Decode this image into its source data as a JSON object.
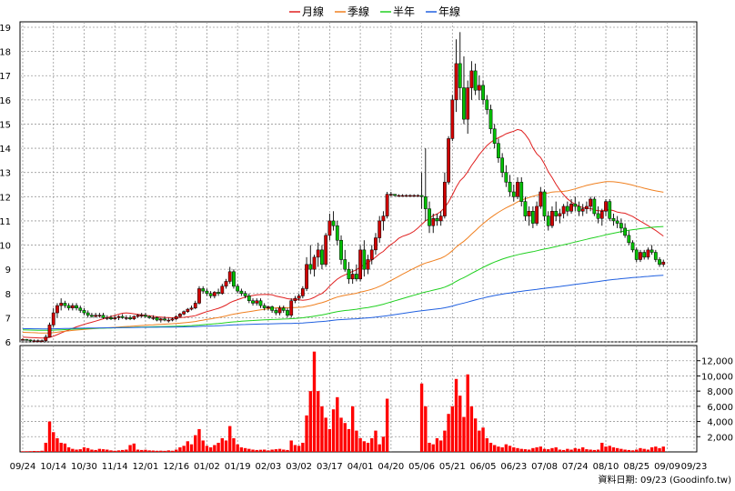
{
  "legend": [
    {
      "label": "月線",
      "color": "#e02020"
    },
    {
      "label": "季線",
      "color": "#f08020"
    },
    {
      "label": "半年",
      "color": "#20d020"
    },
    {
      "label": "年線",
      "color": "#2060e0"
    }
  ],
  "credit": "資料日期: 09/23  (Goodinfo.tw)",
  "chart_data": {
    "type": "candlestick",
    "price_axis": {
      "ylim": [
        6,
        19
      ],
      "ticks": [
        6,
        7,
        8,
        9,
        10,
        11,
        12,
        13,
        14,
        15,
        16,
        17,
        18,
        19
      ]
    },
    "volume_axis": {
      "ylim": [
        0,
        14000
      ],
      "ticks": [
        "2,000",
        "4,000",
        "6,000",
        "8,000",
        "10,000",
        "12,000"
      ],
      "tick_values": [
        2000,
        4000,
        6000,
        8000,
        10000,
        12000
      ]
    },
    "x_ticks": [
      "09/24",
      "10/14",
      "10/30",
      "11/14",
      "12/01",
      "12/16",
      "01/02",
      "01/19",
      "02/03",
      "03/02",
      "03/17",
      "04/01",
      "04/20",
      "05/06",
      "05/21",
      "06/05",
      "06/23",
      "07/08",
      "07/24",
      "08/10",
      "08/25",
      "09/09",
      "09/23"
    ],
    "x_tick_index": [
      0,
      8,
      16,
      24,
      32,
      40,
      48,
      56,
      64,
      72,
      80,
      88,
      96,
      104,
      112,
      120,
      128,
      136,
      144,
      152,
      160,
      168,
      175
    ],
    "n_days": 176,
    "prices": [
      [
        6.1,
        6.15,
        6.05,
        6.1
      ],
      [
        6.1,
        6.12,
        6.05,
        6.08
      ],
      [
        6.08,
        6.1,
        6.02,
        6.05
      ],
      [
        6.05,
        6.1,
        6.0,
        6.05
      ],
      [
        6.05,
        6.1,
        6.0,
        6.05
      ],
      [
        6.05,
        6.1,
        6.0,
        6.05
      ],
      [
        6.05,
        6.3,
        6.0,
        6.2
      ],
      [
        6.2,
        6.8,
        6.2,
        6.7
      ],
      [
        6.7,
        7.4,
        6.6,
        7.2
      ],
      [
        7.2,
        7.6,
        7.0,
        7.5
      ],
      [
        7.5,
        7.8,
        7.3,
        7.6
      ],
      [
        7.6,
        7.7,
        7.4,
        7.5
      ],
      [
        7.5,
        7.6,
        7.3,
        7.4
      ],
      [
        7.4,
        7.6,
        7.3,
        7.5
      ],
      [
        7.5,
        7.6,
        7.3,
        7.4
      ],
      [
        7.4,
        7.5,
        7.2,
        7.3
      ],
      [
        7.3,
        7.4,
        7.1,
        7.2
      ],
      [
        7.2,
        7.3,
        7.0,
        7.1
      ],
      [
        7.1,
        7.2,
        7.0,
        7.05
      ],
      [
        7.05,
        7.2,
        7.0,
        7.1
      ],
      [
        7.1,
        7.2,
        7.0,
        7.1
      ],
      [
        7.1,
        7.2,
        6.95,
        7.0
      ],
      [
        7.0,
        7.1,
        6.9,
        7.0
      ],
      [
        7.0,
        7.1,
        6.9,
        6.95
      ],
      [
        6.95,
        7.1,
        6.9,
        7.0
      ],
      [
        7.0,
        7.1,
        6.9,
        7.05
      ],
      [
        7.05,
        7.15,
        6.95,
        7.0
      ],
      [
        7.0,
        7.1,
        6.9,
        7.0
      ],
      [
        7.0,
        7.1,
        6.9,
        6.95
      ],
      [
        6.95,
        7.1,
        6.9,
        7.05
      ],
      [
        7.05,
        7.15,
        7.0,
        7.1
      ],
      [
        7.1,
        7.2,
        7.0,
        7.1
      ],
      [
        7.1,
        7.2,
        7.0,
        7.05
      ],
      [
        7.05,
        7.1,
        6.95,
        7.0
      ],
      [
        7.0,
        7.1,
        6.9,
        7.0
      ],
      [
        7.0,
        7.05,
        6.85,
        6.9
      ],
      [
        6.9,
        7.0,
        6.8,
        6.95
      ],
      [
        6.95,
        7.05,
        6.85,
        6.9
      ],
      [
        6.9,
        7.0,
        6.8,
        6.9
      ],
      [
        6.9,
        7.0,
        6.85,
        6.95
      ],
      [
        6.95,
        7.1,
        6.9,
        7.05
      ],
      [
        7.05,
        7.2,
        7.0,
        7.15
      ],
      [
        7.15,
        7.3,
        7.1,
        7.25
      ],
      [
        7.25,
        7.4,
        7.2,
        7.35
      ],
      [
        7.35,
        7.5,
        7.3,
        7.4
      ],
      [
        7.4,
        7.7,
        7.35,
        7.6
      ],
      [
        7.6,
        8.3,
        7.55,
        8.2
      ],
      [
        8.2,
        8.3,
        8.0,
        8.1
      ],
      [
        8.1,
        8.2,
        7.9,
        8.0
      ],
      [
        8.0,
        8.1,
        7.8,
        7.9
      ],
      [
        7.9,
        8.1,
        7.8,
        8.05
      ],
      [
        8.05,
        8.2,
        7.9,
        8.0
      ],
      [
        8.0,
        8.4,
        7.95,
        8.3
      ],
      [
        8.3,
        8.6,
        8.2,
        8.5
      ],
      [
        8.5,
        9.1,
        8.4,
        8.9
      ],
      [
        8.9,
        9.0,
        8.2,
        8.3
      ],
      [
        8.3,
        8.4,
        8.0,
        8.1
      ],
      [
        8.1,
        8.2,
        7.9,
        8.0
      ],
      [
        8.0,
        8.1,
        7.8,
        7.9
      ],
      [
        7.9,
        8.0,
        7.6,
        7.7
      ],
      [
        7.7,
        7.8,
        7.5,
        7.6
      ],
      [
        7.6,
        7.8,
        7.5,
        7.7
      ],
      [
        7.7,
        7.8,
        7.4,
        7.5
      ],
      [
        7.5,
        7.6,
        7.3,
        7.4
      ],
      [
        7.4,
        7.5,
        7.3,
        7.45
      ],
      [
        7.45,
        7.5,
        7.2,
        7.3
      ],
      [
        7.3,
        7.4,
        7.1,
        7.2
      ],
      [
        7.2,
        7.5,
        7.1,
        7.4
      ],
      [
        7.4,
        7.5,
        7.2,
        7.3
      ],
      [
        7.3,
        7.4,
        7.0,
        7.1
      ],
      [
        7.1,
        7.8,
        7.0,
        7.7
      ],
      [
        7.7,
        7.9,
        7.6,
        7.8
      ],
      [
        7.8,
        8.0,
        7.7,
        7.9
      ],
      [
        7.9,
        8.3,
        7.8,
        8.2
      ],
      [
        8.2,
        9.5,
        8.1,
        9.2
      ],
      [
        9.2,
        10.0,
        8.8,
        9.0
      ],
      [
        9.0,
        9.6,
        8.7,
        9.5
      ],
      [
        9.5,
        10.1,
        9.1,
        9.8
      ],
      [
        9.8,
        10.0,
        9.0,
        9.2
      ],
      [
        9.2,
        10.5,
        9.1,
        10.4
      ],
      [
        10.4,
        11.3,
        10.2,
        11.0
      ],
      [
        11.0,
        11.4,
        10.6,
        10.8
      ],
      [
        10.8,
        11.0,
        10.0,
        10.2
      ],
      [
        10.2,
        10.4,
        9.2,
        9.4
      ],
      [
        9.4,
        9.8,
        8.9,
        9.0
      ],
      [
        9.0,
        9.3,
        8.4,
        8.6
      ],
      [
        8.6,
        9.0,
        8.4,
        8.8
      ],
      [
        8.8,
        9.2,
        8.5,
        8.6
      ],
      [
        8.6,
        10.0,
        8.5,
        9.8
      ],
      [
        9.8,
        10.2,
        8.7,
        9.0
      ],
      [
        9.0,
        9.6,
        8.8,
        9.4
      ],
      [
        9.4,
        10.0,
        9.2,
        9.8
      ],
      [
        9.8,
        10.5,
        9.6,
        10.3
      ],
      [
        10.3,
        11.2,
        10.1,
        11.0
      ],
      [
        11.0,
        11.4,
        10.6,
        11.2
      ],
      [
        11.2,
        12.2,
        11.1,
        12.1
      ],
      [
        12.1,
        12.2,
        12.0,
        12.1
      ],
      [
        12.1,
        12.1,
        12.0,
        12.05
      ],
      [
        12.05,
        12.1,
        12.0,
        12.05
      ],
      [
        12.05,
        12.1,
        12.0,
        12.05
      ],
      [
        12.05,
        12.1,
        12.0,
        12.05
      ],
      [
        12.05,
        12.1,
        12.0,
        12.05
      ],
      [
        12.05,
        12.1,
        12.0,
        12.05
      ],
      [
        12.05,
        12.1,
        12.0,
        12.05
      ],
      [
        12.05,
        13.0,
        11.5,
        12.0
      ],
      [
        12.0,
        14.0,
        11.0,
        11.5
      ],
      [
        11.5,
        11.8,
        10.5,
        10.8
      ],
      [
        10.8,
        11.3,
        10.5,
        11.1
      ],
      [
        11.1,
        11.3,
        10.8,
        11.0
      ],
      [
        11.0,
        11.4,
        10.8,
        11.2
      ],
      [
        11.2,
        13.0,
        11.1,
        12.6
      ],
      [
        12.6,
        14.5,
        12.5,
        14.4
      ],
      [
        14.4,
        16.2,
        14.3,
        16.0
      ],
      [
        16.0,
        18.5,
        15.5,
        17.5
      ],
      [
        17.5,
        18.8,
        16.0,
        16.5
      ],
      [
        16.5,
        17.8,
        15.0,
        15.2
      ],
      [
        15.2,
        16.8,
        14.6,
        16.5
      ],
      [
        16.5,
        17.6,
        16.0,
        17.2
      ],
      [
        17.2,
        17.5,
        16.2,
        16.4
      ],
      [
        16.4,
        17.0,
        16.0,
        16.6
      ],
      [
        16.6,
        16.8,
        15.8,
        16.0
      ],
      [
        16.0,
        16.2,
        15.4,
        15.6
      ],
      [
        15.6,
        15.8,
        14.6,
        14.8
      ],
      [
        14.8,
        15.0,
        14.0,
        14.2
      ],
      [
        14.2,
        14.4,
        13.4,
        13.6
      ],
      [
        13.6,
        13.8,
        12.8,
        13.0
      ],
      [
        13.0,
        13.3,
        12.4,
        12.6
      ],
      [
        12.6,
        12.9,
        12.0,
        12.2
      ],
      [
        12.2,
        12.5,
        11.8,
        12.0
      ],
      [
        12.0,
        12.8,
        11.9,
        12.6
      ],
      [
        12.6,
        12.8,
        11.6,
        11.8
      ],
      [
        11.8,
        12.0,
        11.0,
        11.2
      ],
      [
        11.2,
        11.6,
        10.8,
        11.4
      ],
      [
        11.4,
        11.6,
        10.7,
        10.9
      ],
      [
        10.9,
        11.8,
        10.8,
        11.6
      ],
      [
        11.6,
        12.4,
        11.5,
        12.2
      ],
      [
        12.2,
        12.3,
        11.0,
        11.2
      ],
      [
        11.2,
        11.4,
        10.6,
        10.8
      ],
      [
        10.8,
        11.6,
        10.7,
        11.4
      ],
      [
        11.4,
        11.8,
        11.0,
        11.2
      ],
      [
        11.2,
        11.5,
        10.9,
        11.3
      ],
      [
        11.3,
        11.7,
        11.1,
        11.6
      ],
      [
        11.6,
        11.8,
        11.2,
        11.4
      ],
      [
        11.4,
        11.9,
        11.3,
        11.7
      ],
      [
        11.7,
        12.0,
        11.4,
        11.6
      ],
      [
        11.6,
        11.8,
        11.2,
        11.4
      ],
      [
        11.4,
        11.7,
        11.2,
        11.5
      ],
      [
        11.5,
        11.8,
        11.3,
        11.6
      ],
      [
        11.6,
        12.0,
        11.4,
        11.9
      ],
      [
        11.9,
        12.0,
        11.2,
        11.3
      ],
      [
        11.3,
        11.6,
        10.9,
        11.1
      ],
      [
        11.1,
        11.5,
        10.8,
        11.4
      ],
      [
        11.4,
        11.9,
        11.2,
        11.8
      ],
      [
        11.8,
        11.9,
        11.0,
        11.1
      ],
      [
        11.1,
        11.3,
        10.8,
        11.0
      ],
      [
        11.0,
        11.2,
        10.7,
        10.9
      ],
      [
        10.9,
        11.1,
        10.5,
        10.7
      ],
      [
        10.7,
        10.9,
        10.3,
        10.4
      ],
      [
        10.4,
        10.6,
        10.0,
        10.1
      ],
      [
        10.1,
        10.2,
        9.7,
        9.8
      ],
      [
        9.8,
        9.9,
        9.3,
        9.4
      ],
      [
        9.4,
        9.8,
        9.3,
        9.7
      ],
      [
        9.7,
        9.8,
        9.4,
        9.5
      ],
      [
        9.5,
        9.9,
        9.4,
        9.8
      ],
      [
        9.8,
        10.0,
        9.6,
        9.7
      ],
      [
        9.7,
        9.8,
        9.3,
        9.4
      ],
      [
        9.4,
        9.5,
        9.1,
        9.2
      ],
      [
        9.2,
        9.4,
        9.1,
        9.3
      ]
    ],
    "volumes": [
      80,
      90,
      100,
      120,
      110,
      150,
      1200,
      4000,
      2600,
      1800,
      1200,
      1100,
      600,
      400,
      300,
      350,
      600,
      500,
      300,
      250,
      400,
      350,
      300,
      200,
      150,
      200,
      250,
      300,
      900,
      1100,
      300,
      250,
      280,
      200,
      180,
      150,
      160,
      140,
      200,
      150,
      300,
      600,
      800,
      1400,
      1000,
      2200,
      3000,
      1500,
      800,
      600,
      900,
      1200,
      1800,
      1500,
      3400,
      1800,
      1000,
      600,
      500,
      400,
      300,
      250,
      280,
      300,
      200,
      300,
      350,
      400,
      300,
      250,
      1500,
      900,
      800,
      1200,
      4800,
      8000,
      13200,
      8000,
      6000,
      4500,
      3000,
      5600,
      7200,
      4500,
      3800,
      3000,
      6000,
      2800,
      1800,
      1400,
      1200,
      1800,
      2800,
      1000,
      2000,
      7000,
      0,
      0,
      0,
      0,
      0,
      0,
      0,
      0,
      9000,
      6000,
      1200,
      1000,
      1800,
      1500,
      2800,
      5000,
      6000,
      9600,
      7400,
      4600,
      10200,
      6000,
      4400,
      2800,
      3200,
      1800,
      1200,
      900,
      700,
      600,
      1000,
      800,
      600,
      500,
      400,
      350,
      300,
      500,
      600,
      700,
      400,
      350,
      500,
      600,
      300,
      250,
      400,
      300,
      500,
      400,
      600,
      350,
      300,
      250,
      300,
      1200,
      700,
      800,
      600,
      500,
      400,
      300,
      250,
      200,
      300,
      500,
      400,
      300,
      600,
      700,
      500,
      700
    ]
  }
}
